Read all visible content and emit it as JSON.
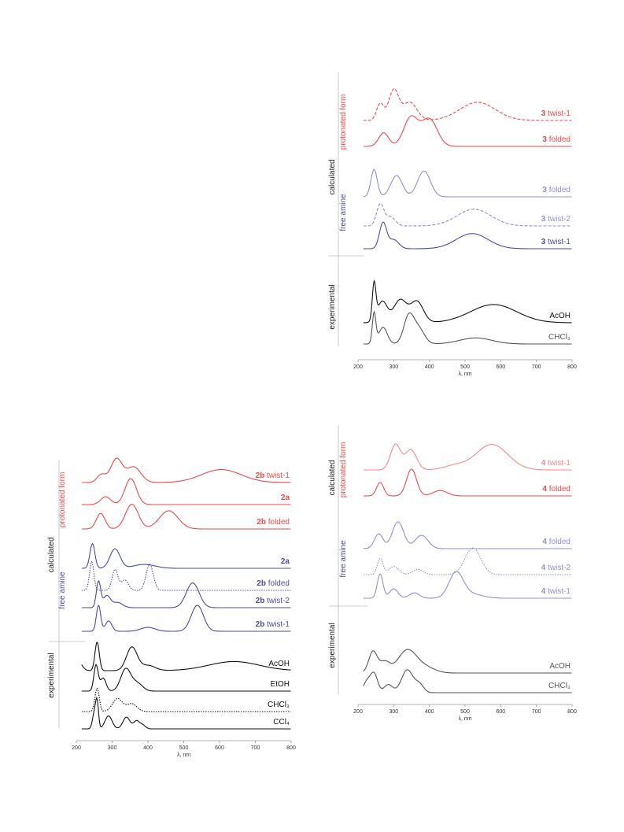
{
  "colors": {
    "red": "#f04848",
    "blue_dark": "#4a4aa8",
    "blue_light": "#8f8fcf",
    "red_light": "#f58a8a",
    "black": "#111111",
    "gray": "#555555"
  },
  "chart_data": [
    {
      "type": "line",
      "panel": "top-right",
      "xlabel": "λ, nm",
      "x_ticks": [
        "200",
        "300",
        "400",
        "500",
        "600",
        "700",
        "800"
      ],
      "xlim": [
        200,
        800
      ],
      "group_labels": {
        "calculated": "calculated",
        "protonated": "protonated form",
        "free": "free amine",
        "experimental": "experimental"
      },
      "series": [
        {
          "label_bold": "3",
          "label_rest": " twist-1",
          "group": "protonated",
          "style": "dashed",
          "color": "red",
          "peaks": [
            [
              262,
              0.55,
              10
            ],
            [
              300,
              1.0,
              14
            ],
            [
              345,
              0.6,
              20
            ],
            [
              535,
              0.6,
              50
            ]
          ]
        },
        {
          "label_bold": "3",
          "label_rest": " folded",
          "group": "protonated",
          "style": "solid",
          "color": "red",
          "peaks": [
            [
              272,
              0.45,
              14
            ],
            [
              348,
              0.95,
              20
            ],
            [
              400,
              0.9,
              22
            ]
          ]
        },
        {
          "label_bold": "3",
          "label_rest": " folded",
          "group": "free",
          "style": "solid",
          "color": "blue_light",
          "peaks": [
            [
              245,
              0.9,
              9
            ],
            [
              308,
              0.7,
              16
            ],
            [
              385,
              0.85,
              18
            ]
          ]
        },
        {
          "label_bold": "3",
          "label_rest": " twist-2",
          "group": "free",
          "style": "dashed",
          "color": "blue_light",
          "peaks": [
            [
              262,
              0.7,
              10
            ],
            [
              290,
              0.3,
              14
            ],
            [
              525,
              0.55,
              48
            ]
          ]
        },
        {
          "label_bold": "3",
          "label_rest": " twist-1",
          "group": "free",
          "style": "solid",
          "color": "blue_dark",
          "peaks": [
            [
              270,
              0.85,
              10
            ],
            [
              300,
              0.3,
              14
            ],
            [
              520,
              0.5,
              45
            ]
          ]
        },
        {
          "label_bold": "",
          "label_rest": "AcOH",
          "group": "experimental",
          "style": "solid",
          "color": "black",
          "peaks": [
            [
              245,
              1.2,
              5
            ],
            [
              268,
              0.7,
              14
            ],
            [
              318,
              0.75,
              18
            ],
            [
              365,
              0.7,
              18
            ],
            [
              580,
              0.6,
              65
            ]
          ]
        },
        {
          "label_bold": "",
          "label_rest": "CHCl₃",
          "group": "experimental",
          "style": "solid",
          "color": "gray",
          "peaks": [
            [
              245,
              1.0,
              5
            ],
            [
              270,
              0.55,
              12
            ],
            [
              342,
              0.9,
              14
            ],
            [
              370,
              0.5,
              16
            ],
            [
              530,
              0.2,
              45
            ]
          ]
        }
      ]
    },
    {
      "type": "line",
      "panel": "bottom-left",
      "xlabel": "λ, nm",
      "x_ticks": [
        "200",
        "300",
        "400",
        "500",
        "600",
        "700",
        "800"
      ],
      "xlim": [
        200,
        800
      ],
      "group_labels": {
        "calculated": "calculated",
        "protonated": "protonated form",
        "free": "free amine",
        "experimental": "experimental"
      },
      "series": [
        {
          "label_bold": "2b",
          "label_rest": " twist-1",
          "group": "protonated",
          "style": "solid",
          "color": "red",
          "peaks": [
            [
              270,
              0.3,
              12
            ],
            [
              312,
              0.9,
              16
            ],
            [
              360,
              0.6,
              20
            ],
            [
              605,
              0.5,
              55
            ]
          ]
        },
        {
          "label_bold": "2a",
          "label_rest": "",
          "group": "protonated",
          "style": "solid",
          "color": "red",
          "peaks": [
            [
              282,
              0.3,
              14
            ],
            [
              352,
              1.0,
              16
            ]
          ]
        },
        {
          "label_bold": "2b",
          "label_rest": " folded",
          "group": "protonated",
          "style": "solid",
          "color": "red",
          "peaks": [
            [
              268,
              0.6,
              12
            ],
            [
              355,
              0.95,
              18
            ],
            [
              458,
              0.7,
              26
            ]
          ]
        },
        {
          "label_bold": "2a",
          "label_rest": "",
          "group": "free",
          "style": "solid",
          "color": "blue_dark",
          "peaks": [
            [
              245,
              0.95,
              7
            ],
            [
              308,
              0.75,
              14
            ],
            [
              390,
              0.15,
              30
            ]
          ]
        },
        {
          "label_bold": "2b",
          "label_rest": " folded",
          "group": "free",
          "style": "dotted",
          "color": "blue_dark",
          "peaks": [
            [
              243,
              1.1,
              6
            ],
            [
              308,
              0.8,
              8
            ],
            [
              335,
              0.4,
              10
            ],
            [
              405,
              1.0,
              10
            ]
          ]
        },
        {
          "label_bold": "2b",
          "label_rest": " twist-2",
          "group": "free",
          "style": "solid",
          "color": "blue_dark",
          "peaks": [
            [
              262,
              1.0,
              6
            ],
            [
              285,
              0.45,
              10
            ],
            [
              315,
              0.2,
              14
            ],
            [
              525,
              0.95,
              18
            ]
          ]
        },
        {
          "label_bold": "2b",
          "label_rest": " twist-1",
          "group": "free",
          "style": "solid",
          "color": "blue_dark",
          "peaks": [
            [
              262,
              1.0,
              6
            ],
            [
              290,
              0.4,
              9
            ],
            [
              400,
              0.15,
              20
            ],
            [
              538,
              1.0,
              17
            ]
          ]
        },
        {
          "label_bold": "",
          "label_rest": "AcOH",
          "group": "experimental",
          "style": "solid",
          "color": "black",
          "peaks": [
            [
              200,
              0.5,
              12
            ],
            [
              258,
              1.1,
              6
            ],
            [
              355,
              0.9,
              15
            ],
            [
              400,
              0.2,
              20
            ],
            [
              640,
              0.35,
              70
            ]
          ]
        },
        {
          "label_bold": "",
          "label_rest": "EtOH",
          "group": "experimental",
          "style": "solid",
          "color": "black",
          "peaks": [
            [
              255,
              1.0,
              6
            ],
            [
              275,
              0.5,
              8
            ],
            [
              338,
              0.85,
              14
            ],
            [
              370,
              0.3,
              15
            ]
          ]
        },
        {
          "label_bold": "",
          "label_rest": "CHCl₃",
          "group": "experimental",
          "style": "dotted",
          "color": "black",
          "peaks": [
            [
              258,
              0.9,
              6
            ],
            [
              315,
              0.5,
              14
            ],
            [
              355,
              0.3,
              14
            ]
          ]
        },
        {
          "label_bold": "",
          "label_rest": "CCl₄",
          "group": "experimental",
          "style": "solid",
          "color": "black",
          "peaks": [
            [
              250,
              0.6,
              5
            ],
            [
              258,
              1.0,
              4
            ],
            [
              290,
              0.5,
              10
            ],
            [
              340,
              0.45,
              10
            ],
            [
              368,
              0.3,
              8
            ],
            [
              385,
              0.15,
              8
            ]
          ]
        }
      ]
    },
    {
      "type": "line",
      "panel": "bottom-right",
      "xlabel": "λ, nm",
      "x_ticks": [
        "200",
        "300",
        "400",
        "500",
        "600",
        "700",
        "800"
      ],
      "xlim": [
        200,
        800
      ],
      "group_labels": {
        "calculated": "calculated",
        "protonated": "protonated form",
        "free": "free amine",
        "experimental": "experimental"
      },
      "series": [
        {
          "label_bold": "4",
          "label_rest": " twist-1",
          "group": "protonated",
          "style": "solid",
          "color": "red_light",
          "peaks": [
            [
              305,
              0.95,
              14
            ],
            [
              348,
              0.75,
              16
            ],
            [
              470,
              0.15,
              30
            ],
            [
              575,
              0.95,
              45
            ]
          ]
        },
        {
          "label_bold": "4",
          "label_rest": " folded",
          "group": "protonated",
          "style": "solid",
          "color": "red",
          "peaks": [
            [
              262,
              0.5,
              10
            ],
            [
              350,
              1.0,
              14
            ],
            [
              430,
              0.2,
              20
            ]
          ]
        },
        {
          "label_bold": "4",
          "label_rest": " folded",
          "group": "free",
          "style": "solid",
          "color": "blue_light",
          "peaks": [
            [
              258,
              0.55,
              12
            ],
            [
              312,
              1.0,
              16
            ],
            [
              378,
              0.5,
              18
            ]
          ]
        },
        {
          "label_bold": "4",
          "label_rest": " twist-2",
          "group": "free",
          "style": "dotted",
          "color": "blue_light",
          "peaks": [
            [
              262,
              0.6,
              8
            ],
            [
              300,
              0.3,
              14
            ],
            [
              368,
              0.2,
              14
            ],
            [
              522,
              1.0,
              22
            ]
          ]
        },
        {
          "label_bold": "4",
          "label_rest": " twist-1",
          "group": "free",
          "style": "solid",
          "color": "blue_light",
          "peaks": [
            [
              262,
              0.9,
              8
            ],
            [
              300,
              0.35,
              12
            ],
            [
              358,
              0.2,
              14
            ],
            [
              475,
              0.95,
              20
            ],
            [
              520,
              0.15,
              30
            ]
          ]
        },
        {
          "label_bold": "",
          "label_rest": "AcOH",
          "group": "experimental",
          "style": "solid",
          "color": "gray",
          "peaks": [
            [
              242,
              0.8,
              12
            ],
            [
              275,
              0.4,
              14
            ],
            [
              338,
              0.85,
              26
            ],
            [
              390,
              0.2,
              26
            ]
          ]
        },
        {
          "label_bold": "",
          "label_rest": "CHCl₃",
          "group": "experimental",
          "style": "solid",
          "color": "gray",
          "peaks": [
            [
              225,
              0.4,
              10
            ],
            [
              245,
              0.7,
              10
            ],
            [
              285,
              0.3,
              12
            ],
            [
              338,
              0.85,
              16
            ],
            [
              372,
              0.3,
              12
            ]
          ]
        }
      ]
    }
  ]
}
